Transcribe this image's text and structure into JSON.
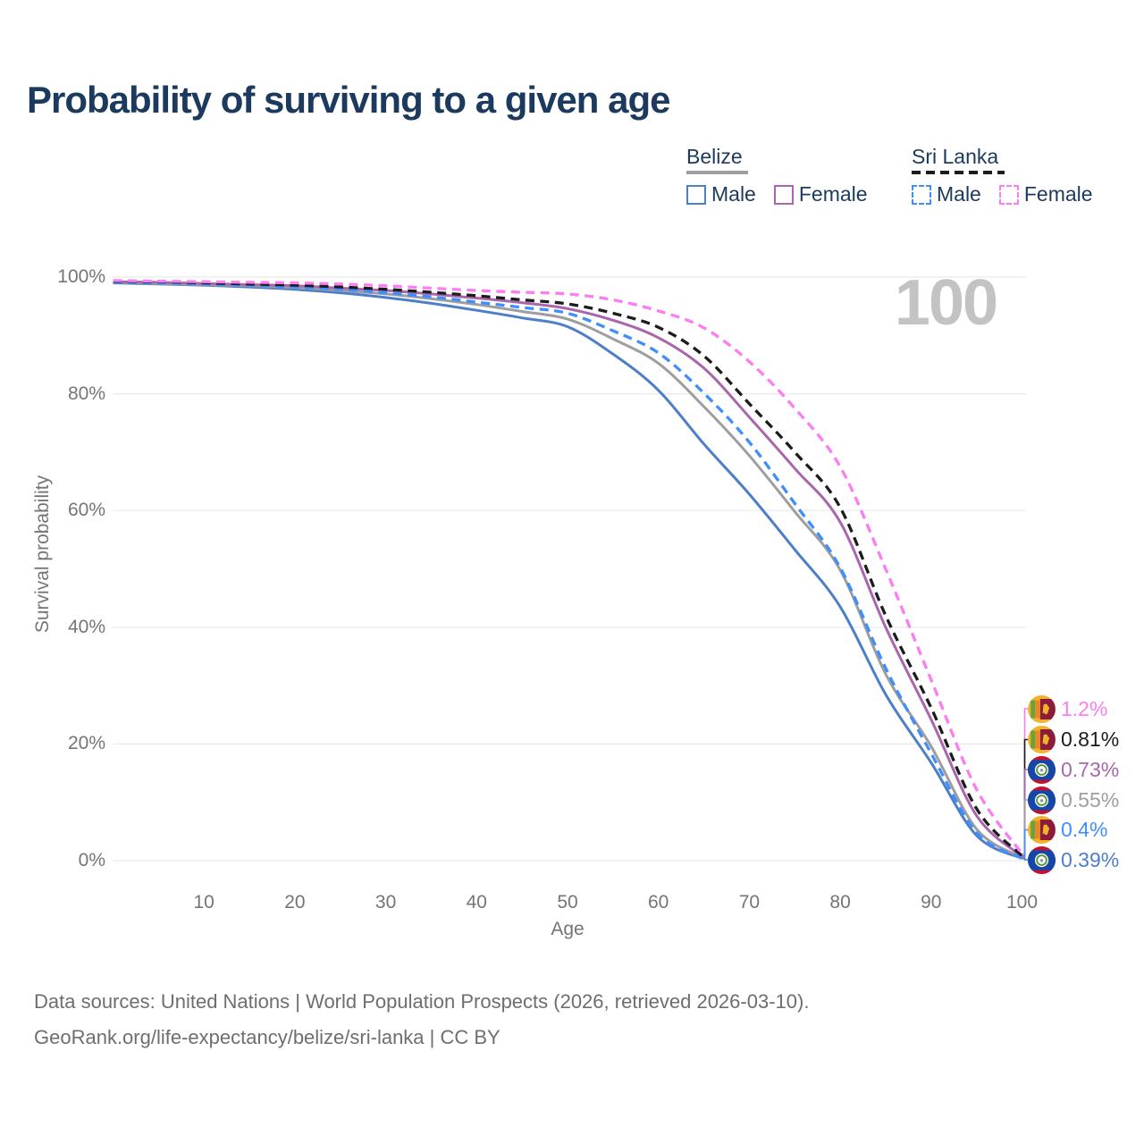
{
  "title": "Probability of surviving to a given age",
  "watermark": "100",
  "legend": {
    "groups": [
      {
        "country": "Belize",
        "underline_style": "solid",
        "underline_color": "#9e9e9e",
        "items": [
          {
            "label": "Male",
            "color": "#4d7ec8",
            "style": "solid"
          },
          {
            "label": "Female",
            "color": "#aa66ad",
            "style": "solid"
          }
        ]
      },
      {
        "country": "Sri Lanka",
        "underline_style": "dashed",
        "underline_color": "#1c1c1c",
        "items": [
          {
            "label": "Male",
            "color": "#3f8efd",
            "style": "dashed"
          },
          {
            "label": "Female",
            "color": "#fb7df2",
            "style": "dashed"
          }
        ]
      }
    ]
  },
  "chart_data": {
    "type": "line",
    "title": "Probability of surviving to a given age",
    "xlabel": "Age",
    "ylabel": "Survival probability",
    "xlim": [
      0,
      100
    ],
    "ylim": [
      0,
      100
    ],
    "x_ticks": [
      10,
      20,
      30,
      40,
      50,
      60,
      70,
      80,
      90,
      100
    ],
    "y_ticks": [
      0,
      20,
      40,
      60,
      80,
      100
    ],
    "y_tick_labels": [
      "0%",
      "20%",
      "40%",
      "60%",
      "80%",
      "100%"
    ],
    "grid": "horizontal-only",
    "legend_position": "top-right",
    "age_marker": 100,
    "x": [
      0,
      5,
      10,
      15,
      20,
      25,
      30,
      35,
      40,
      45,
      50,
      55,
      60,
      65,
      70,
      75,
      80,
      85,
      90,
      95,
      100
    ],
    "series": [
      {
        "name": "Sri Lanka Female",
        "country": "Sri Lanka",
        "sex": "Female",
        "color": "#fb7df2",
        "dashed": true,
        "flag": "sri-lanka",
        "end_label": "1.2%",
        "end_value": 1.2,
        "values": [
          99.4,
          99.3,
          99.2,
          99.1,
          99.0,
          98.8,
          98.5,
          98.1,
          97.7,
          97.4,
          97.1,
          96.1,
          94.2,
          91.3,
          85.5,
          77.5,
          67.5,
          50.0,
          31.0,
          12.2,
          1.2
        ]
      },
      {
        "name": "Sri Lanka",
        "country": "Sri Lanka",
        "sex": "Both",
        "color": "#1c1c1c",
        "dashed": true,
        "flag": "sri-lanka",
        "end_label": "0.81%",
        "end_value": 0.81,
        "values": [
          99.3,
          99.2,
          99.0,
          98.8,
          98.6,
          98.3,
          97.9,
          97.4,
          96.8,
          96.1,
          95.4,
          93.8,
          91.4,
          86.5,
          78.3,
          70.0,
          60.5,
          42.0,
          26.2,
          8.9,
          0.81
        ]
      },
      {
        "name": "Belize Female",
        "country": "Belize",
        "sex": "Female",
        "color": "#aa66ad",
        "dashed": false,
        "flag": "belize",
        "end_label": "0.73%",
        "end_value": 0.73,
        "values": [
          99.2,
          99.1,
          98.9,
          98.7,
          98.5,
          98.1,
          97.7,
          97.1,
          96.4,
          95.6,
          94.6,
          92.6,
          89.6,
          84.4,
          76.0,
          67.2,
          58.0,
          40.0,
          24.2,
          7.7,
          0.73
        ]
      },
      {
        "name": "Belize",
        "country": "Belize",
        "sex": "Both",
        "color": "#9e9e9e",
        "dashed": false,
        "flag": "belize",
        "end_label": "0.55%",
        "end_value": 0.55,
        "values": [
          99.1,
          98.9,
          98.7,
          98.5,
          98.2,
          97.7,
          97.1,
          96.3,
          95.3,
          94.1,
          92.8,
          89.4,
          85.2,
          77.8,
          69.4,
          59.8,
          49.8,
          32.0,
          19.6,
          5.4,
          0.55
        ]
      },
      {
        "name": "Sri Lanka Male",
        "country": "Sri Lanka",
        "sex": "Male",
        "color": "#3f8efd",
        "dashed": true,
        "flag": "sri-lanka",
        "end_label": "0.4%",
        "end_value": 0.4,
        "values": [
          99.1,
          99.0,
          98.8,
          98.6,
          98.3,
          97.9,
          97.3,
          96.6,
          95.7,
          94.8,
          93.8,
          90.8,
          87.0,
          80.1,
          71.7,
          61.2,
          50.2,
          33.0,
          18.4,
          4.8,
          0.4
        ]
      },
      {
        "name": "Belize Male",
        "country": "Belize",
        "sex": "Male",
        "color": "#4d7ec8",
        "dashed": false,
        "flag": "belize",
        "end_label": "0.39%",
        "end_value": 0.39,
        "values": [
          99.0,
          98.8,
          98.6,
          98.3,
          97.9,
          97.3,
          96.5,
          95.5,
          94.3,
          93.0,
          91.5,
          86.8,
          80.6,
          71.4,
          62.8,
          53.3,
          43.5,
          28.5,
          16.8,
          4.3,
          0.39
        ]
      }
    ]
  },
  "theme": {
    "title_color": "#1c3a5e",
    "axis_text_color": "#757575",
    "grid_color": "#eaeaea",
    "watermark_color": "#c3c3c3",
    "footer_color": "#6e6e6e",
    "background": "#ffffff"
  },
  "footer": {
    "line1": "Data sources: United Nations | World Population Prospects (2026, retrieved 2026-03-10).",
    "line2": "GeoRank.org/life-expectancy/belize/sri-lanka | CC BY"
  }
}
